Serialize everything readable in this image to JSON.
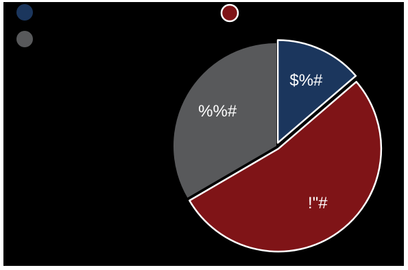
{
  "chart_data": {
    "type": "pie",
    "slices": [
      {
        "label": "$%#",
        "value": 13.7,
        "color": "#1B365D",
        "exploded": true
      },
      {
        "label": "!\"#",
        "value": 52.9,
        "color": "#7F1417",
        "exploded": true
      },
      {
        "label": "%%#",
        "value": 33.4,
        "color": "#58595B",
        "exploded": false
      }
    ],
    "legend_placement": "top-left",
    "slice_label_color": "#ffffff",
    "slice_edge_color": "#ffffff"
  }
}
